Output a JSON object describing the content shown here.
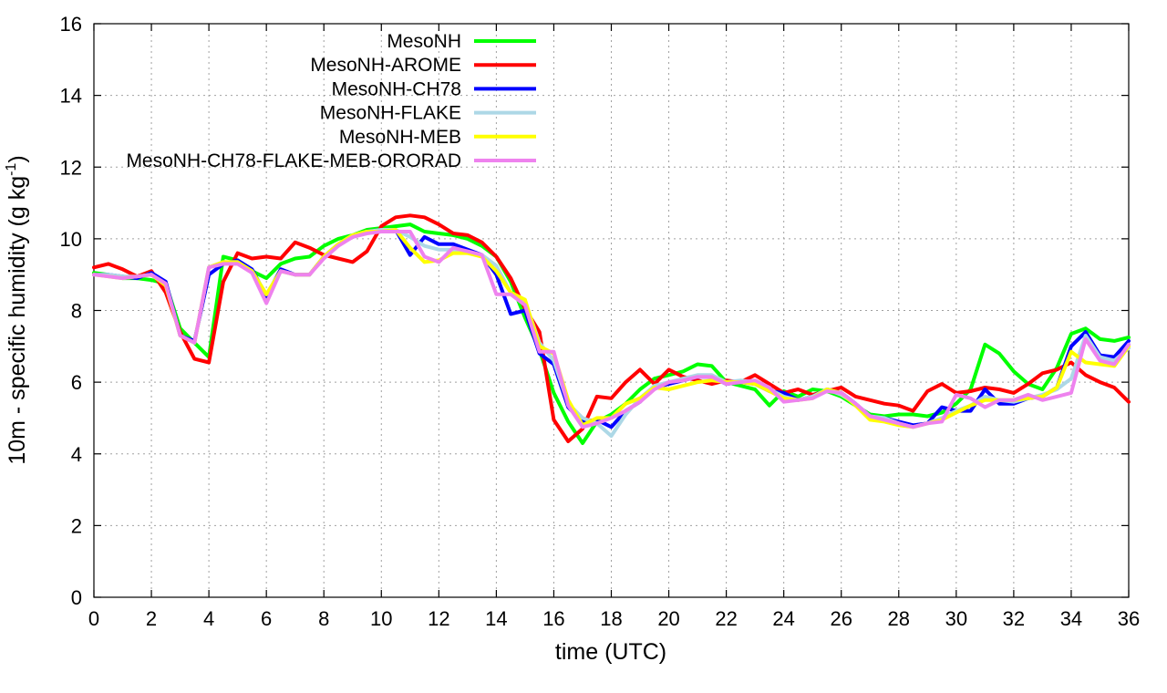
{
  "chart_data": {
    "type": "line",
    "xlabel": "time (UTC)",
    "ylabel": "10m - specific humidity (g kg",
    "ylabel_sup": "-1",
    "ylabel_end": ")",
    "xlim": [
      0,
      36
    ],
    "ylim": [
      0,
      16
    ],
    "xticks": [
      0,
      2,
      4,
      6,
      8,
      10,
      12,
      14,
      16,
      18,
      20,
      22,
      24,
      26,
      28,
      30,
      32,
      34,
      36
    ],
    "yticks": [
      0,
      2,
      4,
      6,
      8,
      10,
      12,
      14,
      16
    ],
    "grid": true,
    "legend_position": "top-left",
    "x": [
      0,
      0.5,
      1,
      1.5,
      2,
      2.5,
      3,
      3.5,
      4,
      4.5,
      5,
      5.5,
      6,
      6.5,
      7,
      7.5,
      8,
      8.5,
      9,
      9.5,
      10,
      10.5,
      11,
      11.5,
      12,
      12.5,
      13,
      13.5,
      14,
      14.5,
      15,
      15.5,
      16,
      16.5,
      17,
      17.5,
      18,
      18.5,
      19,
      19.5,
      20,
      20.5,
      21,
      21.5,
      22,
      22.5,
      23,
      23.5,
      24,
      24.5,
      25,
      25.5,
      26,
      26.5,
      27,
      27.5,
      28,
      28.5,
      29,
      29.5,
      30,
      30.5,
      31,
      31.5,
      32,
      32.5,
      33,
      33.5,
      34,
      34.5,
      35,
      35.5,
      36
    ],
    "series": [
      {
        "name": "MesoNH",
        "color": "#00ff00",
        "values": [
          9.05,
          9.0,
          8.9,
          8.9,
          8.85,
          8.75,
          7.5,
          7.1,
          6.7,
          9.5,
          9.4,
          9.1,
          8.9,
          9.3,
          9.45,
          9.5,
          9.8,
          10.0,
          10.1,
          10.25,
          10.3,
          10.35,
          10.4,
          10.2,
          10.15,
          10.1,
          10.0,
          9.8,
          9.5,
          8.8,
          7.8,
          6.9,
          5.7,
          4.9,
          4.3,
          4.9,
          5.1,
          5.4,
          5.8,
          6.1,
          6.2,
          6.3,
          6.5,
          6.45,
          6.0,
          5.9,
          5.8,
          5.35,
          5.75,
          5.6,
          5.8,
          5.75,
          5.6,
          5.35,
          5.1,
          5.05,
          5.1,
          5.1,
          5.05,
          5.15,
          5.4,
          5.8,
          7.05,
          6.8,
          6.3,
          5.95,
          5.8,
          6.4,
          7.35,
          7.5,
          7.2,
          7.15,
          7.25
        ]
      },
      {
        "name": "MesoNH-AROME",
        "color": "#ff0000",
        "values": [
          9.2,
          9.3,
          9.15,
          8.95,
          9.1,
          8.5,
          7.4,
          6.65,
          6.55,
          8.8,
          9.6,
          9.45,
          9.5,
          9.45,
          9.9,
          9.75,
          9.55,
          9.45,
          9.35,
          9.65,
          10.35,
          10.6,
          10.65,
          10.6,
          10.4,
          10.15,
          10.1,
          9.9,
          9.5,
          8.9,
          8.05,
          7.4,
          4.95,
          4.35,
          4.7,
          5.6,
          5.55,
          6.0,
          6.35,
          5.95,
          6.35,
          6.15,
          6.05,
          5.95,
          6.05,
          6.0,
          6.2,
          5.95,
          5.7,
          5.8,
          5.65,
          5.75,
          5.85,
          5.6,
          5.5,
          5.4,
          5.35,
          5.2,
          5.75,
          5.95,
          5.7,
          5.75,
          5.85,
          5.8,
          5.7,
          5.95,
          6.25,
          6.35,
          6.55,
          6.2,
          6.0,
          5.85,
          5.45
        ]
      },
      {
        "name": "MesoNH-CH78",
        "color": "#0000ff",
        "values": [
          9.0,
          9.0,
          8.95,
          8.9,
          9.05,
          8.8,
          7.3,
          7.15,
          9.0,
          9.3,
          9.4,
          9.15,
          8.4,
          9.15,
          9.0,
          9.0,
          9.5,
          9.85,
          10.05,
          10.2,
          10.25,
          10.25,
          9.55,
          10.05,
          9.85,
          9.85,
          9.7,
          9.55,
          9.0,
          7.9,
          8.0,
          6.8,
          6.5,
          5.3,
          4.9,
          4.95,
          4.75,
          5.2,
          5.45,
          5.85,
          5.95,
          6.05,
          6.15,
          6.15,
          5.95,
          6.0,
          5.95,
          5.75,
          5.7,
          5.5,
          5.6,
          5.8,
          5.7,
          5.4,
          5.05,
          5.0,
          4.9,
          4.8,
          4.85,
          5.3,
          5.2,
          5.2,
          5.8,
          5.4,
          5.4,
          5.55,
          5.6,
          5.85,
          7.0,
          7.4,
          6.75,
          6.7,
          7.15
        ]
      },
      {
        "name": "MesoNH-FLAKE",
        "color": "#add8e6",
        "values": [
          9.0,
          9.0,
          8.95,
          8.95,
          9.0,
          8.7,
          7.3,
          7.1,
          9.2,
          9.35,
          9.35,
          9.1,
          8.45,
          9.1,
          9.0,
          9.0,
          9.5,
          9.85,
          10.1,
          10.2,
          10.25,
          10.25,
          10.05,
          9.8,
          9.7,
          9.7,
          9.6,
          9.55,
          9.25,
          8.5,
          8.25,
          7.1,
          6.6,
          5.4,
          5.0,
          4.85,
          4.5,
          5.1,
          5.55,
          5.9,
          6.0,
          6.1,
          6.2,
          6.2,
          6.0,
          6.05,
          6.0,
          5.8,
          5.6,
          5.5,
          5.6,
          5.8,
          5.65,
          5.4,
          5.05,
          5.0,
          4.85,
          4.75,
          4.85,
          5.0,
          5.2,
          5.35,
          5.6,
          5.5,
          5.45,
          5.55,
          5.65,
          5.8,
          6.1,
          7.3,
          6.7,
          6.6,
          6.95
        ]
      },
      {
        "name": "MesoNH-MEB",
        "color": "#ffff00",
        "values": [
          9.0,
          8.95,
          8.9,
          8.95,
          9.0,
          8.7,
          7.3,
          7.1,
          9.2,
          9.35,
          9.35,
          9.1,
          8.45,
          9.1,
          9.0,
          9.0,
          9.5,
          9.85,
          10.1,
          10.2,
          10.2,
          10.25,
          9.75,
          9.35,
          9.4,
          9.6,
          9.6,
          9.5,
          9.1,
          8.5,
          8.3,
          7.0,
          6.8,
          5.5,
          4.8,
          5.0,
          5.0,
          5.4,
          5.55,
          5.85,
          5.8,
          5.9,
          6.0,
          6.05,
          6.0,
          6.0,
          5.95,
          5.75,
          5.55,
          5.5,
          5.55,
          5.8,
          5.7,
          5.35,
          4.95,
          4.9,
          4.8,
          4.75,
          4.85,
          4.95,
          5.15,
          5.35,
          5.5,
          5.5,
          5.5,
          5.55,
          5.6,
          5.85,
          6.85,
          6.55,
          6.5,
          6.45,
          7.0
        ]
      },
      {
        "name": "MesoNH-CH78-FLAKE-MEB-ORORAD",
        "color": "#ee82ee",
        "values": [
          9.0,
          8.95,
          8.9,
          8.95,
          9.0,
          8.75,
          7.3,
          7.1,
          9.2,
          9.3,
          9.3,
          9.05,
          8.2,
          9.1,
          9.0,
          9.0,
          9.45,
          9.8,
          10.05,
          10.15,
          10.2,
          10.2,
          10.2,
          9.5,
          9.35,
          9.75,
          9.65,
          9.55,
          8.45,
          8.45,
          8.15,
          6.85,
          6.85,
          5.35,
          4.75,
          4.85,
          5.0,
          5.2,
          5.45,
          5.8,
          6.0,
          6.05,
          6.15,
          6.15,
          5.95,
          6.0,
          6.05,
          5.85,
          5.45,
          5.5,
          5.55,
          5.75,
          5.7,
          5.4,
          5.05,
          4.95,
          4.85,
          4.75,
          4.85,
          4.9,
          5.65,
          5.55,
          5.3,
          5.5,
          5.5,
          5.65,
          5.5,
          5.6,
          5.7,
          7.2,
          6.6,
          6.5,
          7.05
        ]
      }
    ]
  }
}
